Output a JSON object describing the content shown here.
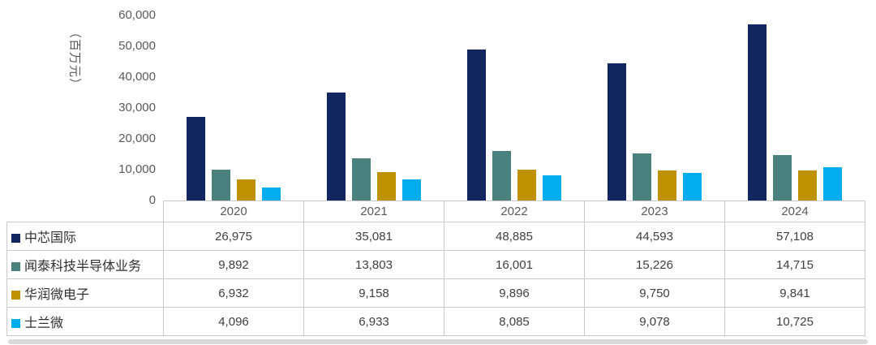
{
  "chart_data": {
    "type": "bar",
    "title": "",
    "xlabel": "",
    "ylabel": "（百万元）",
    "categories": [
      "2020",
      "2021",
      "2022",
      "2023",
      "2024"
    ],
    "series": [
      {
        "name": "中芯国际",
        "color": "#12275F",
        "values": [
          26975,
          35081,
          48885,
          44593,
          57108
        ]
      },
      {
        "name": "闻泰科技半导体业务",
        "color": "#4A807E",
        "values": [
          9892,
          13803,
          16001,
          15226,
          14715
        ]
      },
      {
        "name": "华润微电子",
        "color": "#BF9000",
        "values": [
          6932,
          9158,
          9896,
          9750,
          9841
        ]
      },
      {
        "name": "士兰微",
        "color": "#00AEEF",
        "values": [
          4096,
          6933,
          8085,
          9078,
          10725
        ]
      }
    ],
    "ylim": [
      0,
      60000
    ],
    "yticks": [
      0,
      10000,
      20000,
      30000,
      40000,
      50000,
      60000
    ],
    "ytick_labels": [
      "0",
      "10,000",
      "20,000",
      "30,000",
      "40,000",
      "50,000",
      "60,000"
    ],
    "grid": false,
    "legend_position": "table-left-column",
    "table_values": [
      [
        "26,975",
        "35,081",
        "48,885",
        "44,593",
        "57,108"
      ],
      [
        "9,892",
        "13,803",
        "16,001",
        "15,226",
        "14,715"
      ],
      [
        "6,932",
        "9,158",
        "9,896",
        "9,750",
        "9,841"
      ],
      [
        "4,096",
        "6,933",
        "8,085",
        "9,078",
        "10,725"
      ]
    ]
  },
  "colors": {
    "axis_text": "#595959",
    "table_border": "#c9c9c9",
    "value_text": "#404040",
    "scroll_strip": "#d9d9d9"
  }
}
